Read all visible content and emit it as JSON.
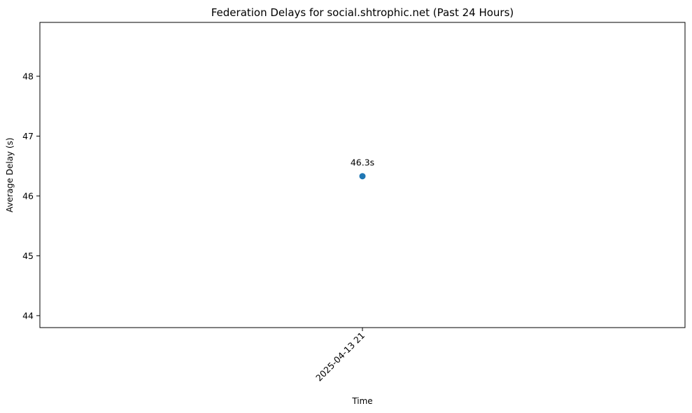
{
  "chart_data": {
    "type": "scatter",
    "title": "Federation Delays for social.shtrophic.net (Past 24 Hours)",
    "xlabel": "Time",
    "ylabel": "Average Delay (s)",
    "x": [
      "2025-04-13 21"
    ],
    "y_ticks": [
      44,
      45,
      46,
      47,
      48
    ],
    "ylim": [
      43.8,
      48.9
    ],
    "grid": false,
    "series": [
      {
        "values": [
          46.33
        ],
        "data_labels": [
          "46.3s"
        ],
        "color": "#1f77b4"
      }
    ]
  }
}
